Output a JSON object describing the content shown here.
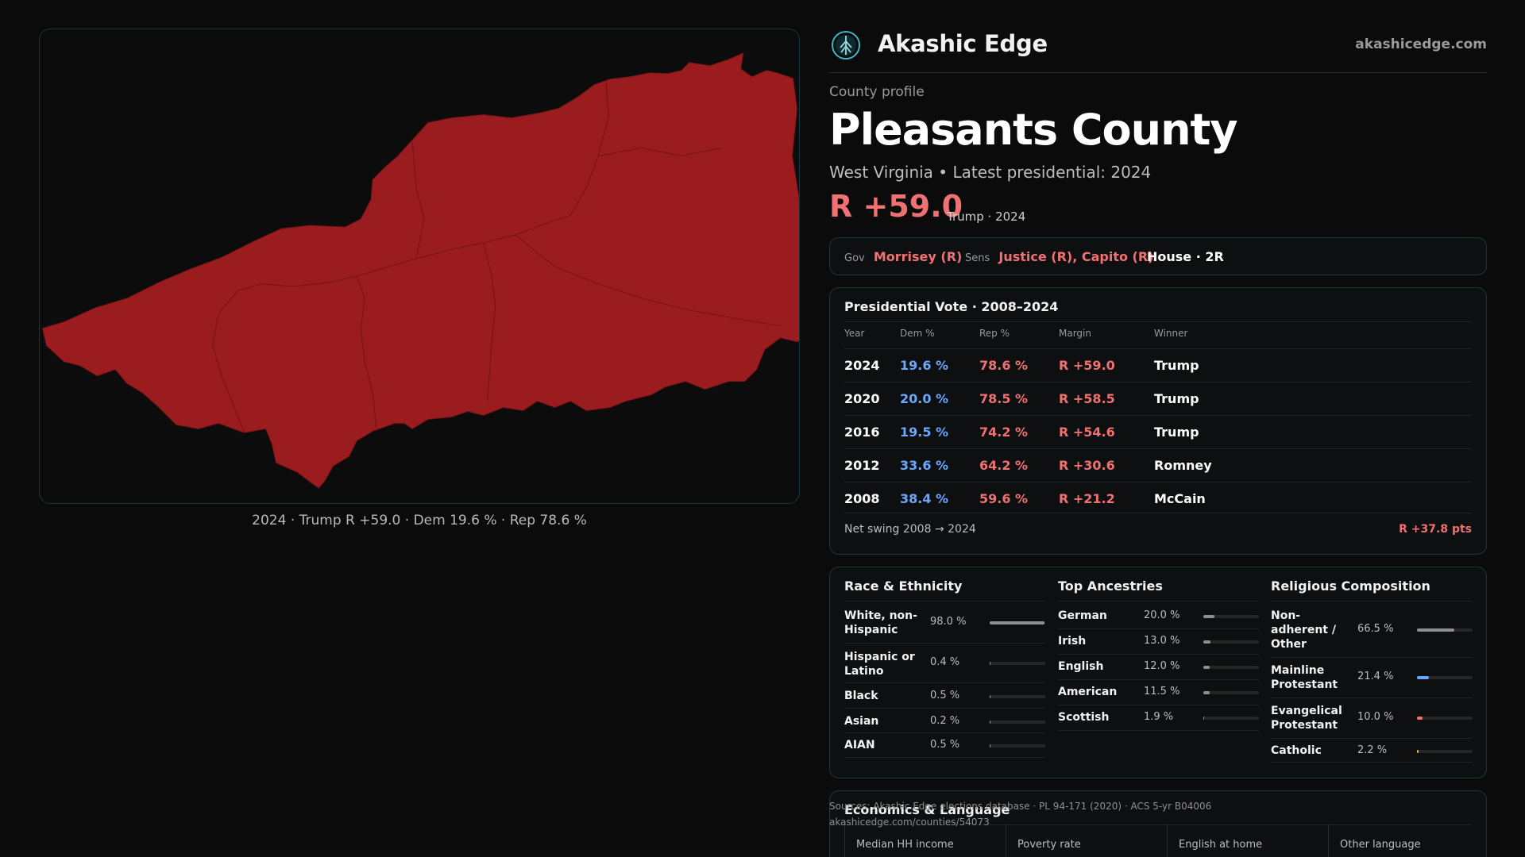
{
  "map": {
    "caption": "2024 · Trump R +59.0 · Dem 19.6 % · Rep 78.6 %",
    "fill_color": "#9b1c1f"
  },
  "brand": {
    "name": "Akashic Edge",
    "domain": "akashicedge.com",
    "logo_icon": "tree-emblem-icon"
  },
  "county": {
    "eyebrow": "County profile",
    "name": "Pleasants County",
    "subtitle": "West Virginia • Latest presidential: 2024",
    "margin": "R +59.0",
    "margin_note": "Trump · 2024"
  },
  "officials": {
    "gov_label": "Gov",
    "gov_value": "Morrisey (R)",
    "sens_label": "Sens",
    "sens_value": "Justice (R), Capito (R)",
    "house_value": "House · 2R"
  },
  "presidential": {
    "title": "Presidential Vote · 2008–2024",
    "headers": {
      "year": "Year",
      "dem": "Dem %",
      "rep": "Rep %",
      "margin": "Margin",
      "winner": "Winner"
    },
    "rows": [
      {
        "year": "2024",
        "dem": "19.6 %",
        "rep": "78.6 %",
        "margin": "R +59.0",
        "winner": "Trump"
      },
      {
        "year": "2020",
        "dem": "20.0 %",
        "rep": "78.5 %",
        "margin": "R +58.5",
        "winner": "Trump"
      },
      {
        "year": "2016",
        "dem": "19.5 %",
        "rep": "74.2 %",
        "margin": "R +54.6",
        "winner": "Trump"
      },
      {
        "year": "2012",
        "dem": "33.6 %",
        "rep": "64.2 %",
        "margin": "R +30.6",
        "winner": "Romney"
      },
      {
        "year": "2008",
        "dem": "38.4 %",
        "rep": "59.6 %",
        "margin": "R +21.2",
        "winner": "McCain"
      }
    ],
    "swing_label": "Net swing 2008 → 2024",
    "swing_value": "R +37.8 pts"
  },
  "race": {
    "title": "Race & Ethnicity",
    "bar_color": "#8a8f99",
    "items": [
      {
        "label": "White, non-Hispanic",
        "pct": "98.0 %",
        "value": 98.0
      },
      {
        "label": "Hispanic or Latino",
        "pct": "0.4 %",
        "value": 0.4
      },
      {
        "label": "Black",
        "pct": "0.5 %",
        "value": 0.5
      },
      {
        "label": "Asian",
        "pct": "0.2 %",
        "value": 0.2
      },
      {
        "label": "AIAN",
        "pct": "0.5 %",
        "value": 0.5
      }
    ]
  },
  "ancestry": {
    "title": "Top Ancestries",
    "bar_color": "#8a8f99",
    "items": [
      {
        "label": "German",
        "pct": "20.0 %",
        "value": 20.0
      },
      {
        "label": "Irish",
        "pct": "13.0 %",
        "value": 13.0
      },
      {
        "label": "English",
        "pct": "12.0 %",
        "value": 12.0
      },
      {
        "label": "American",
        "pct": "11.5 %",
        "value": 11.5
      },
      {
        "label": "Scottish",
        "pct": "1.9 %",
        "value": 1.9
      }
    ]
  },
  "religion": {
    "title": "Religious Composition",
    "items": [
      {
        "label": "Non-adherent / Other",
        "pct": "66.5 %",
        "value": 66.5,
        "color": "#8a8f99"
      },
      {
        "label": "Mainline Protestant",
        "pct": "21.4 %",
        "value": 21.4,
        "color": "#6ba7ff"
      },
      {
        "label": "Evangelical Protestant",
        "pct": "10.0 %",
        "value": 10.0,
        "color": "#f07171"
      },
      {
        "label": "Catholic",
        "pct": "2.2 %",
        "value": 2.2,
        "color": "#e0b04a"
      }
    ]
  },
  "economics": {
    "title": "Economics & Language",
    "columns": [
      "Median HH income",
      "Poverty rate",
      "English at home",
      "Other language"
    ]
  },
  "sources": {
    "line1": "Sources: Akashic Edge elections database · PL 94-171 (2020) · ACS 5-yr B04006",
    "line2": "akashicedge.com/counties/54073"
  }
}
